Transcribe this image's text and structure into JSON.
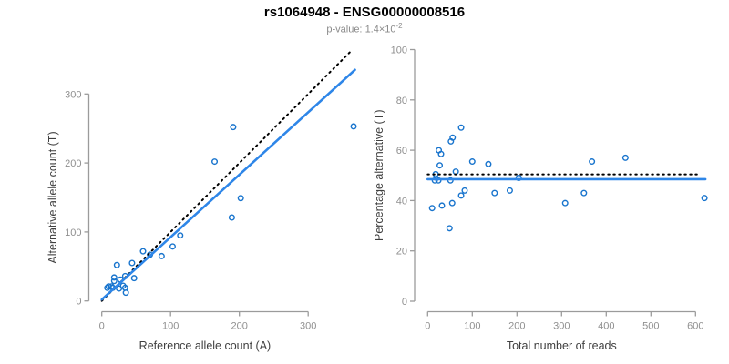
{
  "header": {
    "title": "rs1064948 - ENSG00000008516",
    "subtitle_label": "p-value:",
    "subtitle_base": "1.4×10",
    "subtitle_exp": "-2"
  },
  "colors": {
    "point": "#1874CD",
    "solid_line": "#2E86E8",
    "dotted_line": "#000000",
    "axis": "#9b9b9b",
    "tick_label": "#8f8f8f",
    "axis_title": "#404040",
    "title": "#000000",
    "subtitle": "#8a8a8a"
  },
  "chart_data": [
    {
      "type": "scatter",
      "name": "allele-counts-scatter",
      "xlabel": "Reference allele count (A)",
      "ylabel": "Alternative allele count (T)",
      "xlim": [
        0,
        370
      ],
      "ylim": [
        0,
        365
      ],
      "xticks": [
        0,
        100,
        200,
        300
      ],
      "yticks": [
        0,
        100,
        200,
        300
      ],
      "grid": false,
      "legend": "none",
      "points": [
        [
          8,
          19
        ],
        [
          10,
          21
        ],
        [
          14,
          21
        ],
        [
          16,
          19
        ],
        [
          18,
          34
        ],
        [
          18,
          29
        ],
        [
          22,
          52
        ],
        [
          25,
          18
        ],
        [
          27,
          31
        ],
        [
          31,
          22
        ],
        [
          34,
          19
        ],
        [
          34,
          36
        ],
        [
          35,
          12
        ],
        [
          44,
          55
        ],
        [
          47,
          33
        ],
        [
          60,
          72
        ],
        [
          70,
          67
        ],
        [
          87,
          65
        ],
        [
          103,
          79
        ],
        [
          114,
          95
        ],
        [
          164,
          202
        ],
        [
          189,
          121
        ],
        [
          191,
          252
        ],
        [
          202,
          149
        ],
        [
          366,
          253
        ]
      ],
      "lines": [
        {
          "name": "identity-line",
          "style": "dotted",
          "x1": 0,
          "y1": 0,
          "x2": 362,
          "y2": 362
        },
        {
          "name": "regression-line",
          "style": "solid",
          "x1": 0,
          "y1": 2,
          "x2": 368,
          "y2": 335
        }
      ]
    },
    {
      "type": "scatter",
      "name": "percentage-vs-reads-scatter",
      "xlabel": "Total number of reads",
      "ylabel": "Percentage alternative (T)",
      "xlim": [
        0,
        630
      ],
      "ylim": [
        0,
        100
      ],
      "xticks": [
        0,
        100,
        200,
        300,
        400,
        500,
        600
      ],
      "yticks": [
        0,
        20,
        40,
        60,
        80,
        100
      ],
      "grid": false,
      "legend": "none",
      "points": [
        [
          10,
          37
        ],
        [
          16,
          48
        ],
        [
          18,
          50.5
        ],
        [
          24,
          48
        ],
        [
          25,
          60
        ],
        [
          27,
          54
        ],
        [
          30,
          58.5
        ],
        [
          32,
          38
        ],
        [
          49,
          29
        ],
        [
          51,
          48
        ],
        [
          52,
          63.5
        ],
        [
          55,
          39
        ],
        [
          56,
          65
        ],
        [
          63,
          51.5
        ],
        [
          75,
          69
        ],
        [
          75,
          42
        ],
        [
          83,
          44
        ],
        [
          100,
          55.5
        ],
        [
          136,
          54.5
        ],
        [
          150,
          43
        ],
        [
          184,
          44
        ],
        [
          204,
          49
        ],
        [
          308,
          39
        ],
        [
          350,
          43
        ],
        [
          368,
          55.5
        ],
        [
          443,
          57
        ],
        [
          620,
          41
        ]
      ],
      "lines": [
        {
          "name": "expected-percentage-line",
          "style": "dotted",
          "x1": 0,
          "y1": 50.4,
          "x2": 612,
          "y2": 50.4
        },
        {
          "name": "observed-percentage-line",
          "style": "solid",
          "x1": 0,
          "y1": 48.5,
          "x2": 622,
          "y2": 48.5
        }
      ]
    }
  ]
}
